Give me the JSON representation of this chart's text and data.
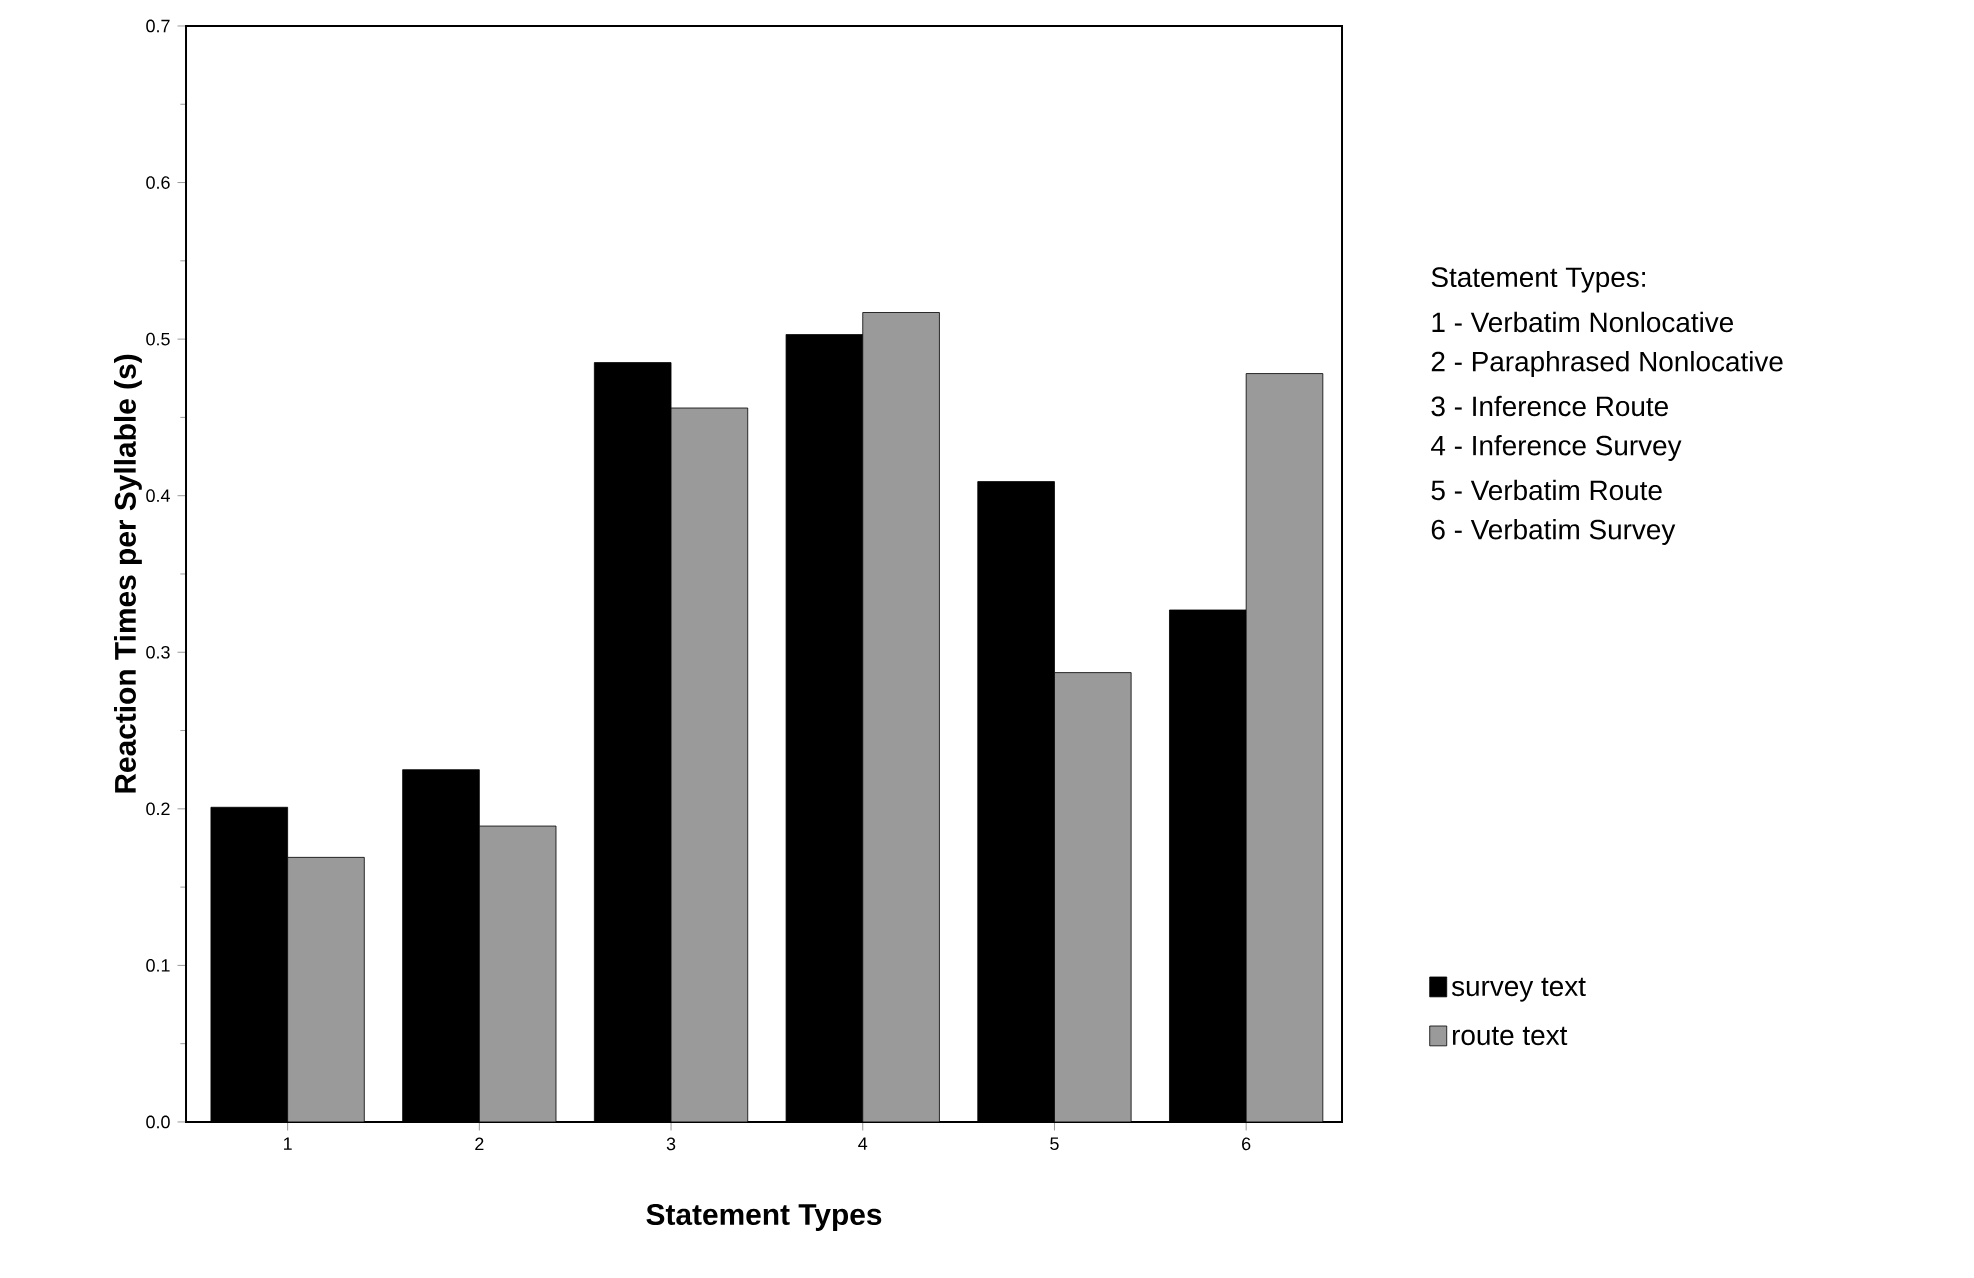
{
  "chart_data": {
    "type": "bar",
    "xlabel": "Statement Types",
    "ylabel": "Reaction Times per Syllable (s)",
    "categories": [
      "1",
      "2",
      "3",
      "4",
      "5",
      "6"
    ],
    "series": [
      {
        "name": "survey text",
        "color": "#000000",
        "values": [
          0.201,
          0.225,
          0.485,
          0.503,
          0.409,
          0.327
        ]
      },
      {
        "name": "route text",
        "color": "#9a9a9a",
        "values": [
          0.169,
          0.189,
          0.456,
          0.517,
          0.287,
          0.478
        ]
      }
    ],
    "ylim": [
      0,
      0.7
    ],
    "yticks": [
      {
        "value": 0,
        "label": "0.0"
      },
      0.1,
      0.2,
      0.3,
      0.4,
      0.5,
      0.6,
      0.7
    ],
    "legend": "right",
    "annotations": [
      "Statement Types:",
      "1 - Verbatim Nonlocative",
      "2 - Paraphrased Nonlocative",
      "3 - Inference Route",
      "4 - Inference Survey",
      "5 - Verbatim Route",
      "6 - Verbatim Survey"
    ]
  }
}
